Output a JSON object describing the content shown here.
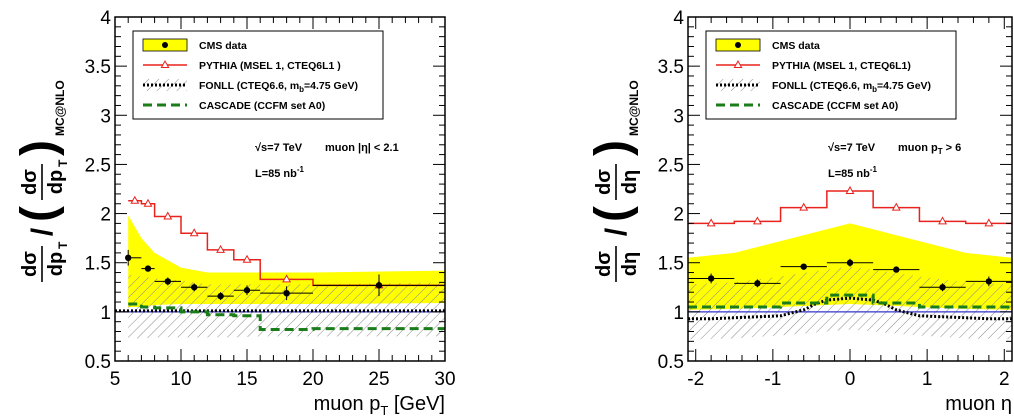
{
  "colors": {
    "band": "#ffff00",
    "pythia": "#e8221c",
    "fonll": "#000000",
    "cascade": "#1a7d1a",
    "mcnlo_line": "#3333cc",
    "hatch": "#8a8a8a"
  },
  "chart_data": [
    {
      "type": "line",
      "xlabel": "muon p",
      "xlabel_sub": "T",
      "xlabel_unit": " [GeV]",
      "ylabel": {
        "num": "dσ",
        "den": "dp",
        "den_sub": "T",
        "sub": "MC@NLO"
      },
      "xlim": [
        5,
        30
      ],
      "ylim": [
        0.5,
        4
      ],
      "xticks": [
        "5",
        "10",
        "15",
        "20",
        "25",
        "30"
      ],
      "yticks": [
        "0.5",
        "1",
        "1.5",
        "2",
        "2.5",
        "3",
        "3.5",
        "4"
      ],
      "legend": [
        {
          "key": "data",
          "label": "CMS data"
        },
        {
          "key": "pythia",
          "label": "PYTHIA (MSEL 1, CTEQ6L1 )"
        },
        {
          "key": "fonll",
          "label": "FONLL (CTEQ6.6, m",
          "sub": "b",
          "tail": "=4.75 GeV)"
        },
        {
          "key": "cascade",
          "label": "CASCADE (CCFM set A0)"
        }
      ],
      "annotations": {
        "energy": "√s=7 TeV",
        "cut": "muon |η| < 2.1",
        "lumi": "L=85 nb",
        "lumi_sup": "-1"
      },
      "edges": [
        6,
        7,
        8,
        10,
        12,
        14,
        16,
        20,
        30
      ],
      "data": {
        "x": [
          6,
          7.5,
          9,
          11,
          13,
          15,
          18,
          25
        ],
        "xerr_lo": [
          0,
          0.5,
          1,
          1,
          1,
          1,
          2,
          5
        ],
        "xerr_hi": [
          1,
          0.5,
          1,
          1,
          1,
          1,
          2,
          5
        ],
        "y": [
          1.55,
          1.44,
          1.31,
          1.25,
          1.16,
          1.22,
          1.19,
          1.27
        ],
        "yerr": [
          0.08,
          0.03,
          0.04,
          0.04,
          0.04,
          0.05,
          0.07,
          0.11
        ]
      },
      "band": {
        "x": [
          6,
          7,
          8,
          10,
          12,
          14,
          16,
          20,
          30
        ],
        "lo": [
          1.05,
          1.05,
          1.07,
          1.08,
          1.08,
          1.08,
          1.08,
          1.08,
          1.09
        ],
        "hi": [
          1.98,
          1.75,
          1.6,
          1.45,
          1.4,
          1.4,
          1.4,
          1.4,
          1.42
        ]
      },
      "hatch": {
        "x": [
          6,
          7,
          8,
          10,
          12,
          14,
          16,
          20,
          30
        ],
        "lo": [
          0.73,
          0.73,
          0.74,
          0.74,
          0.74,
          0.74,
          0.75,
          0.75,
          0.75
        ],
        "hi": [
          1.38,
          1.36,
          1.34,
          1.32,
          1.28,
          1.28,
          1.28,
          1.28,
          1.3
        ]
      },
      "pythia": {
        "x": [
          6.5,
          7.5,
          9,
          11,
          13,
          15,
          18,
          25
        ],
        "y": [
          2.13,
          2.1,
          1.97,
          1.8,
          1.63,
          1.53,
          1.33,
          1.27
        ]
      },
      "fonll": {
        "x": [
          5,
          30
        ],
        "y": [
          1.01,
          1.01
        ]
      },
      "cascade": {
        "y": [
          1.08,
          1.05,
          1.04,
          1.0,
          0.97,
          0.96,
          0.82,
          0.83
        ]
      },
      "mcnlo": 1.0
    },
    {
      "type": "line",
      "xlabel": "muon η",
      "ylabel": {
        "num": "dσ",
        "den": "dη",
        "sub": "MC@NLO"
      },
      "xlim": [
        -2.1,
        2.1
      ],
      "ylim": [
        0.5,
        4
      ],
      "xticks": [
        "-2",
        "-1",
        "0",
        "1",
        "2"
      ],
      "yticks": [
        "0.5",
        "1",
        "1.5",
        "2",
        "2.5",
        "3",
        "3.5",
        "4"
      ],
      "legend": [
        {
          "key": "data",
          "label": "CMS data"
        },
        {
          "key": "pythia",
          "label": "PYTHIA (MSEL 1, CTEQ6L1)"
        },
        {
          "key": "fonll",
          "label": "FONLL (CTEQ6.6, m",
          "sub": "b",
          "tail": "=4.75 GeV)"
        },
        {
          "key": "cascade",
          "label": "CASCADE (CCFM set A0)"
        }
      ],
      "annotations": {
        "energy": "√s=7 TeV",
        "cut": "muon p",
        "cut_sub": "T",
        "cut_tail": " > 6",
        "lumi": "L=85 nb",
        "lumi_sup": "-1"
      },
      "edges": [
        -2.1,
        -1.5,
        -0.9,
        -0.3,
        0.3,
        0.9,
        1.5,
        2.1
      ],
      "data": {
        "x": [
          -1.8,
          -1.2,
          -0.6,
          0,
          0.6,
          1.2,
          1.8
        ],
        "xerr_lo": [
          0.3,
          0.3,
          0.3,
          0.3,
          0.3,
          0.3,
          0.3
        ],
        "xerr_hi": [
          0.3,
          0.3,
          0.3,
          0.3,
          0.3,
          0.3,
          0.3
        ],
        "y": [
          1.34,
          1.29,
          1.46,
          1.5,
          1.43,
          1.25,
          1.31
        ],
        "yerr": [
          0.05,
          0.04,
          0.03,
          0.04,
          0.03,
          0.04,
          0.05
        ]
      },
      "band": {
        "x": [
          -2.1,
          -1.5,
          -0.9,
          -0.3,
          0,
          0.3,
          0.9,
          1.5,
          2.1
        ],
        "lo": [
          1.02,
          1.03,
          1.05,
          1.07,
          1.08,
          1.07,
          1.05,
          1.03,
          1.02
        ],
        "hi": [
          1.55,
          1.6,
          1.72,
          1.84,
          1.9,
          1.84,
          1.72,
          1.6,
          1.55
        ]
      },
      "hatch": {
        "x": [
          -2.1,
          -1.5,
          -0.9,
          -0.3,
          0,
          0.3,
          0.9,
          1.5,
          2.1
        ],
        "lo": [
          0.72,
          0.73,
          0.76,
          0.8,
          0.82,
          0.8,
          0.76,
          0.73,
          0.72
        ],
        "hi": [
          1.28,
          1.3,
          1.36,
          1.43,
          1.46,
          1.43,
          1.36,
          1.3,
          1.28
        ]
      },
      "pythia": {
        "x": [
          -1.8,
          -1.2,
          -0.6,
          0,
          0.6,
          1.2,
          1.8
        ],
        "y": [
          1.9,
          1.92,
          2.06,
          2.23,
          2.06,
          1.92,
          1.9
        ]
      },
      "fonll": {
        "x": [
          -2.1,
          -1.8,
          -1.5,
          -1.2,
          -0.9,
          -0.6,
          -0.45,
          -0.3,
          -0.15,
          0,
          0.15,
          0.3,
          0.45,
          0.6,
          0.9,
          1.2,
          1.5,
          1.8,
          2.1
        ],
        "y": [
          0.93,
          0.93,
          0.94,
          0.95,
          0.96,
          1.02,
          1.08,
          1.12,
          1.13,
          1.14,
          1.13,
          1.12,
          1.08,
          1.02,
          0.96,
          0.95,
          0.94,
          0.93,
          0.93
        ]
      },
      "cascade": {
        "y": [
          1.05,
          1.05,
          1.09,
          1.17,
          1.09,
          1.05,
          1.05
        ]
      },
      "mcnlo": 1.0
    }
  ]
}
